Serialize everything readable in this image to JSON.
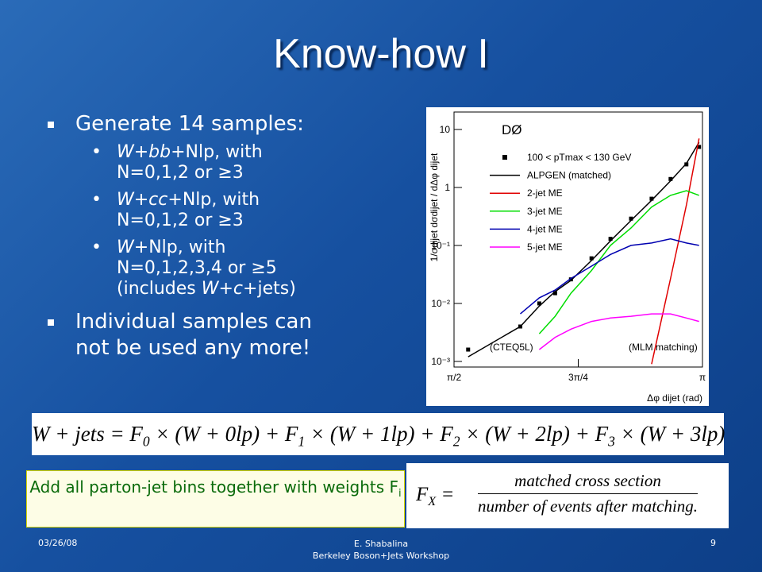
{
  "title": "Know-how I",
  "bullets": [
    {
      "text": "Generate 14 samples:",
      "sub": [
        [
          {
            "text": "W+bb",
            "italic": true
          },
          {
            "text": "+Nlp, with N=0,1,2 or ≥3"
          }
        ],
        [
          {
            "text": "W+cc",
            "italic": true
          },
          {
            "text": "+Nlp, with N=0,1,2 or ≥3"
          }
        ],
        [
          {
            "text": "W",
            "italic": true
          },
          {
            "text": "+Nlp, with N=0,1,2,3,4 or ≥5 (includes "
          },
          {
            "text": "W+c",
            "italic": true
          },
          {
            "text": "+jets)"
          }
        ]
      ]
    },
    {
      "text": "Individual samples can not be used any more!",
      "sub": []
    }
  ],
  "figure": {
    "type": "line",
    "experiment": "DØ",
    "y_label": "1/σdijet dσdijet / dΔφ dijet",
    "x_label": "Δφ dijet (rad)",
    "pdf_note": "(CTEQ5L)",
    "matching_note": "(MLM matching)",
    "log_y": true,
    "xlim": [
      1.5708,
      3.1416
    ],
    "ylim": [
      0.0008,
      20
    ],
    "xticks": [
      {
        "value": 1.5708,
        "label": "π/2"
      },
      {
        "value": 2.3562,
        "label": "3π/4"
      },
      {
        "value": 3.1416,
        "label": "π"
      }
    ],
    "yticks": [
      {
        "value": 0.001,
        "label": "10⁻³"
      },
      {
        "value": 0.01,
        "label": "10⁻²"
      },
      {
        "value": 0.1,
        "label": "10⁻¹"
      },
      1,
      10
    ],
    "x": [
      1.66,
      1.99,
      2.11,
      2.21,
      2.31,
      2.44,
      2.56,
      2.69,
      2.82,
      2.94,
      3.04,
      3.12
    ],
    "series": [
      {
        "name": "100 < pTmax < 130 GeV",
        "color": "#000000",
        "marker": "square",
        "values": [
          0.0016,
          0.004,
          0.01,
          0.015,
          0.026,
          0.06,
          0.13,
          0.29,
          0.64,
          1.4,
          2.5,
          5
        ]
      },
      {
        "name": "ALPGEN (matched)",
        "color": "#000000",
        "values": [
          0.0012,
          0.004,
          0.009,
          0.016,
          0.025,
          0.055,
          0.12,
          0.27,
          0.6,
          1.3,
          2.6,
          6
        ]
      },
      {
        "name": "2-jet ME",
        "color": "#e00000",
        "values": [
          null,
          null,
          null,
          null,
          null,
          null,
          null,
          null,
          0.0009,
          0.027,
          0.5,
          7
        ]
      },
      {
        "name": "3-jet ME",
        "color": "#00dd00",
        "values": [
          null,
          null,
          0.003,
          0.006,
          0.015,
          0.037,
          0.1,
          0.2,
          0.46,
          0.73,
          0.88,
          0.73
        ]
      },
      {
        "name": "4-jet ME",
        "color": "#0000b0",
        "values": [
          null,
          0.0066,
          0.0125,
          0.017,
          0.027,
          0.044,
          0.07,
          0.1,
          0.11,
          0.13,
          0.11,
          0.1
        ]
      },
      {
        "name": "5-jet ME",
        "color": "#ff00ff",
        "values": [
          null,
          null,
          0.0016,
          0.0026,
          0.0036,
          0.0049,
          0.0056,
          0.006,
          0.0066,
          0.0066,
          0.0056,
          0.0049
        ]
      }
    ]
  },
  "equation": [
    {
      "text": "W + jets = F"
    },
    {
      "text": "0",
      "sub": true
    },
    {
      "text": " × (W + 0lp) + F"
    },
    {
      "text": "1",
      "sub": true
    },
    {
      "text": " × (W + 1lp) + F"
    },
    {
      "text": "2",
      "sub": true
    },
    {
      "text": " × (W + 2lp) + F"
    },
    {
      "text": "3",
      "sub": true
    },
    {
      "text": " × (W + 3lp)"
    }
  ],
  "note": [
    {
      "text": "Add all parton-jet bins together with weights F"
    },
    {
      "text": "i",
      "sub": true
    }
  ],
  "weight_formula": {
    "lhs": [
      {
        "text": "F"
      },
      {
        "text": "X",
        "sub": true
      },
      {
        "text": " ="
      }
    ],
    "numerator": "matched cross section",
    "denominator": "number of events after matching."
  },
  "footer": {
    "date": "03/26/08",
    "author": "E. Shabalina",
    "event": "Berkeley Boson+Jets Workshop",
    "page": "9"
  }
}
